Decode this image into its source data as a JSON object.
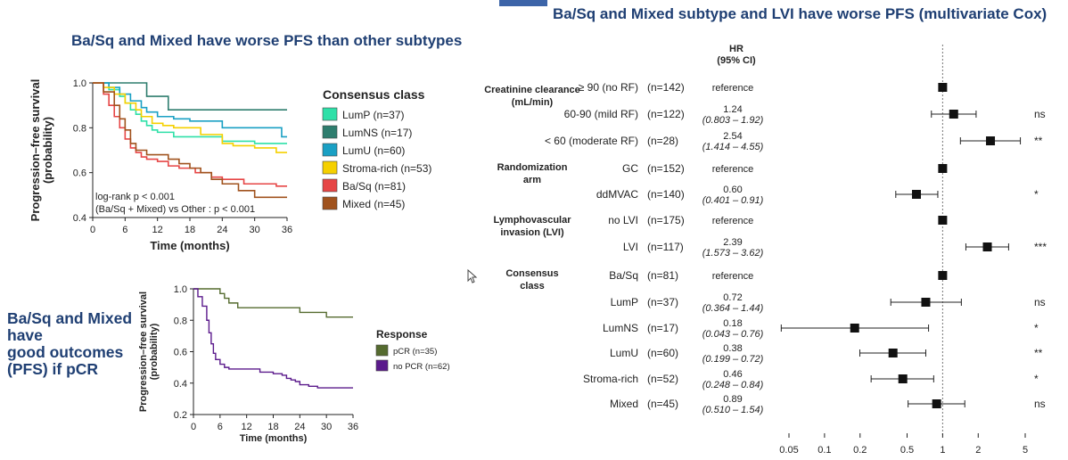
{
  "headers": {
    "left": "Ba/Sq and Mixed have worse PFS than other subtypes",
    "right": "Ba/Sq and Mixed subtype and LVI have worse PFS (multivariate Cox)",
    "note": [
      "Ba/Sq and Mixed",
      "have",
      "good outcomes",
      "(PFS) if pCR"
    ]
  },
  "colors": {
    "header": "#1f3f73",
    "accent": "#3c64a8"
  },
  "chart_data": [
    {
      "type": "line",
      "xlabel": "Time (months)",
      "ylabel": "Progression–free survival\n(probability)",
      "xlim": [
        0,
        36
      ],
      "ylim": [
        0.4,
        1.0
      ],
      "xticks": [
        0,
        6,
        12,
        18,
        24,
        30,
        36
      ],
      "yticks": [
        "0.4",
        "0.6",
        "0.8",
        "1.0"
      ],
      "step": true,
      "legend_title": "Consensus class",
      "legend_position": "right",
      "annotations": [
        "log-rank p < 0.001",
        "(Ba/Sq + Mixed) vs Other : p < 0.001"
      ],
      "series": [
        {
          "name": "LumP (n=37)",
          "color": "#2ee0a8",
          "x": [
            0,
            3,
            5,
            6,
            7,
            8,
            9,
            10,
            11,
            12,
            14,
            15,
            17,
            20,
            24,
            30,
            36
          ],
          "y": [
            1.0,
            0.97,
            0.94,
            0.91,
            0.88,
            0.86,
            0.83,
            0.81,
            0.79,
            0.78,
            0.78,
            0.76,
            0.76,
            0.76,
            0.74,
            0.73,
            0.73
          ]
        },
        {
          "name": "LumNS (n=17)",
          "color": "#2e7d6e",
          "x": [
            0,
            10,
            14,
            36
          ],
          "y": [
            1.0,
            0.94,
            0.88,
            0.88
          ]
        },
        {
          "name": "LumU (n=60)",
          "color": "#1aa0c4",
          "x": [
            0,
            3,
            5,
            7,
            9,
            10,
            12,
            15,
            18,
            24,
            30,
            35,
            36
          ],
          "y": [
            1.0,
            0.98,
            0.95,
            0.92,
            0.89,
            0.87,
            0.85,
            0.84,
            0.83,
            0.8,
            0.8,
            0.76,
            0.76
          ]
        },
        {
          "name": "Stroma-rich (n=53)",
          "color": "#f5d000",
          "x": [
            0,
            2,
            4,
            6,
            8,
            9,
            11,
            13,
            15,
            17,
            20,
            24,
            26,
            30,
            34,
            36
          ],
          "y": [
            1.0,
            0.98,
            0.95,
            0.91,
            0.88,
            0.85,
            0.82,
            0.81,
            0.8,
            0.8,
            0.77,
            0.73,
            0.72,
            0.71,
            0.69,
            0.69
          ]
        },
        {
          "name": "Ba/Sq (n=81)",
          "color": "#e64545",
          "x": [
            0,
            2,
            3,
            4,
            5,
            6,
            7,
            8,
            9,
            10,
            12,
            14,
            16,
            19,
            22,
            24,
            28,
            32,
            34,
            36
          ],
          "y": [
            1.0,
            0.95,
            0.9,
            0.85,
            0.8,
            0.75,
            0.71,
            0.69,
            0.67,
            0.66,
            0.65,
            0.63,
            0.62,
            0.6,
            0.58,
            0.57,
            0.55,
            0.55,
            0.54,
            0.54
          ]
        },
        {
          "name": "Mixed (n=45)",
          "color": "#a0521d",
          "x": [
            0,
            2,
            4,
            5,
            6,
            7,
            8,
            10,
            12,
            14,
            16,
            18,
            20,
            22,
            24,
            27,
            30,
            36
          ],
          "y": [
            1.0,
            0.96,
            0.9,
            0.84,
            0.79,
            0.73,
            0.7,
            0.68,
            0.68,
            0.66,
            0.64,
            0.62,
            0.6,
            0.57,
            0.55,
            0.52,
            0.49,
            0.49
          ]
        }
      ]
    },
    {
      "type": "line",
      "xlabel": "Time (months)",
      "ylabel": "Progression–free survival\n(probability)",
      "xlim": [
        0,
        36
      ],
      "ylim": [
        0.2,
        1.0
      ],
      "xticks": [
        0,
        6,
        12,
        18,
        24,
        30,
        36
      ],
      "yticks": [
        "0.2",
        "0.4",
        "0.6",
        "0.8",
        "1.0"
      ],
      "step": true,
      "legend_title": "Response",
      "legend_position": "right",
      "series": [
        {
          "name": "pCR (n=35)",
          "color": "#556b2f",
          "x": [
            0,
            6,
            7,
            8,
            10,
            12,
            24,
            28,
            30,
            36
          ],
          "y": [
            1.0,
            0.97,
            0.94,
            0.91,
            0.88,
            0.88,
            0.85,
            0.85,
            0.82,
            0.82
          ]
        },
        {
          "name": "no PCR (n=62)",
          "color": "#5b1a8c",
          "x": [
            0,
            1,
            2,
            3,
            3.5,
            4,
            4.5,
            5,
            6,
            7,
            8,
            10,
            14,
            15,
            18,
            20,
            21,
            22,
            23,
            24,
            26,
            28,
            30,
            36
          ],
          "y": [
            1.0,
            0.95,
            0.89,
            0.8,
            0.72,
            0.65,
            0.59,
            0.55,
            0.52,
            0.5,
            0.49,
            0.49,
            0.49,
            0.47,
            0.46,
            0.45,
            0.43,
            0.42,
            0.41,
            0.39,
            0.38,
            0.37,
            0.37,
            0.37
          ]
        }
      ]
    },
    {
      "type": "forest",
      "title": "HR\n(95% CI)",
      "xscale": "log",
      "xlim": [
        0.04,
        6
      ],
      "xticks": [
        "0.05",
        "0.1",
        "0.2",
        "0.5",
        "1",
        "2",
        "5"
      ],
      "reference_line": 1,
      "groups": [
        {
          "label": "Creatinine clearance\n(mL/min)"
        },
        {
          "label": "Randomization\narm"
        },
        {
          "label": "Lymphovascular\ninvasion (LVI)"
        },
        {
          "label": "Consensus\nclass"
        }
      ],
      "rows": [
        {
          "group": 0,
          "label": "≥ 90 (no RF)",
          "n": "(n=142)",
          "hr_text": "reference",
          "hr": 1,
          "lo": null,
          "hi": null,
          "sig": ""
        },
        {
          "group": 0,
          "label": "60-90 (mild RF)",
          "n": "(n=122)",
          "hr_text": "1.24",
          "ci_text": "(0.803 – 1.92)",
          "hr": 1.24,
          "lo": 0.803,
          "hi": 1.92,
          "sig": "ns"
        },
        {
          "group": 0,
          "label": "< 60 (moderate RF)",
          "n": "(n=28)",
          "hr_text": "2.54",
          "ci_text": "(1.414 – 4.55)",
          "hr": 2.54,
          "lo": 1.414,
          "hi": 4.55,
          "sig": "**"
        },
        {
          "group": 1,
          "label": "GC",
          "n": "(n=152)",
          "hr_text": "reference",
          "hr": 1,
          "lo": null,
          "hi": null,
          "sig": ""
        },
        {
          "group": 1,
          "label": "ddMVAC",
          "n": "(n=140)",
          "hr_text": "0.60",
          "ci_text": "(0.401 – 0.91)",
          "hr": 0.6,
          "lo": 0.401,
          "hi": 0.91,
          "sig": "*"
        },
        {
          "group": 2,
          "label": "no LVI",
          "n": "(n=175)",
          "hr_text": "reference",
          "hr": 1,
          "lo": null,
          "hi": null,
          "sig": ""
        },
        {
          "group": 2,
          "label": "LVI",
          "n": "(n=117)",
          "hr_text": "2.39",
          "ci_text": "(1.573 – 3.62)",
          "hr": 2.39,
          "lo": 1.573,
          "hi": 3.62,
          "sig": "***"
        },
        {
          "group": 3,
          "label": "Ba/Sq",
          "n": "(n=81)",
          "hr_text": "reference",
          "hr": 1,
          "lo": null,
          "hi": null,
          "sig": ""
        },
        {
          "group": 3,
          "label": "LumP",
          "n": "(n=37)",
          "hr_text": "0.72",
          "ci_text": "(0.364 – 1.44)",
          "hr": 0.72,
          "lo": 0.364,
          "hi": 1.44,
          "sig": "ns"
        },
        {
          "group": 3,
          "label": "LumNS",
          "n": "(n=17)",
          "hr_text": "0.18",
          "ci_text": "(0.043 – 0.76)",
          "hr": 0.18,
          "lo": 0.043,
          "hi": 0.76,
          "sig": "*"
        },
        {
          "group": 3,
          "label": "LumU",
          "n": "(n=60)",
          "hr_text": "0.38",
          "ci_text": "(0.199 – 0.72)",
          "hr": 0.38,
          "lo": 0.199,
          "hi": 0.72,
          "sig": "**"
        },
        {
          "group": 3,
          "label": "Stroma-rich",
          "n": "(n=52)",
          "hr_text": "0.46",
          "ci_text": "(0.248 – 0.84)",
          "hr": 0.46,
          "lo": 0.248,
          "hi": 0.84,
          "sig": "*"
        },
        {
          "group": 3,
          "label": "Mixed",
          "n": "(n=45)",
          "hr_text": "0.89",
          "ci_text": "(0.510 – 1.54)",
          "hr": 0.89,
          "lo": 0.51,
          "hi": 1.54,
          "sig": "ns"
        }
      ]
    }
  ]
}
